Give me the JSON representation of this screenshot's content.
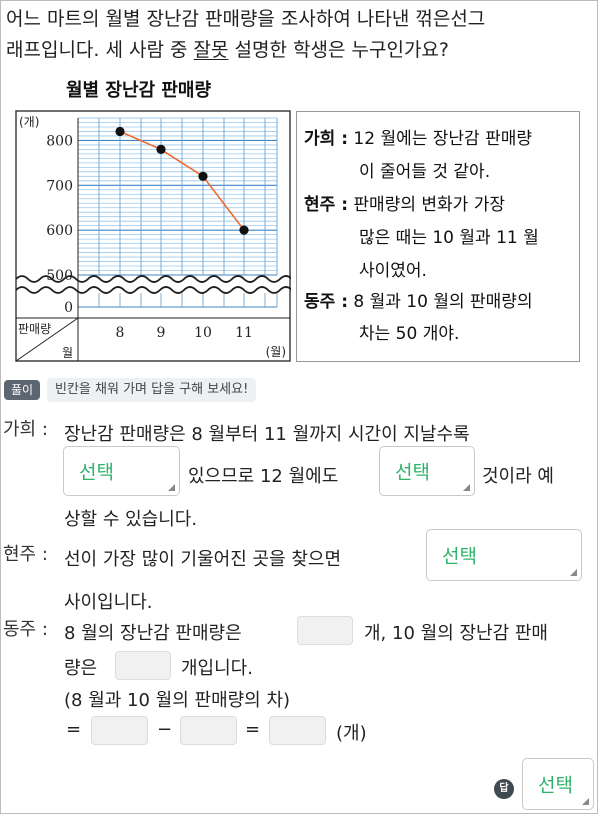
{
  "question": {
    "line1": "어느 마트의 월별 장난감 판매량을 조사하여 나타낸 꺾은선그",
    "line2_before": "래프입니다. 세 사람 중 ",
    "line2_underlined": "잘못",
    "line2_after": " 설명한 학생은 누구인가요?"
  },
  "chart_data": {
    "type": "line",
    "title": "월별 장난감 판매량",
    "y_unit": "(개)",
    "x_unit": "(월)",
    "corner_top": "판매량",
    "corner_bottom": "월",
    "x": [
      8,
      9,
      10,
      11
    ],
    "x_tick_labels": [
      "8",
      "9",
      "10",
      "11"
    ],
    "values": [
      820,
      780,
      720,
      600
    ],
    "y_tick_labels": [
      "800",
      "700",
      "600",
      "500"
    ],
    "y_zero_label": "0",
    "ylim": [
      500,
      850
    ],
    "y_axis_break": true,
    "grid": true,
    "line_color": "#ee6a2c",
    "grid_color": "#6aa6d6"
  },
  "statements": {
    "s1_name": "가희 :",
    "s1_line1": "12 월에는 장난감 판매량",
    "s1_line2": "이 줄어들 것 같아.",
    "s2_name": "현주 :",
    "s2_line1": "판매량의 변화가 가장",
    "s2_line2": "많은 때는 10 월과 11 월",
    "s2_line3": "사이였어.",
    "s3_name": "동주 :",
    "s3_line1": "8 월과 10 월의 판매량의",
    "s3_line2": "차는 50 개야."
  },
  "solution": {
    "badge": "풀이",
    "hint": "빈칸을 채워 가며 답을 구해 보세요!",
    "gahee_name": "가희 :",
    "gahee_l1": "장난감 판매량은 8 월부터 11 월까지 시간이 지날수록",
    "gahee_l2a": "있으므로 12 월에도",
    "gahee_l2b": "것이라 예",
    "gahee_l3": "상할 수 있습니다.",
    "hyunju_name": "현주 :",
    "hyunju_l1": "선이 가장 많이 기울어진 곳을 찾으면",
    "hyunju_l2": "사이입니다.",
    "dongju_name": "동주 :",
    "dongju_l1a": "8 월의 장난감 판매량은",
    "dongju_l1b": "개, 10 월의 장난감 판매",
    "dongju_l2a": "량은",
    "dongju_l2b": "개입니다.",
    "dongju_l3": "(8 월과 10 월의 판매량의 차)",
    "eq1": "=",
    "minus": "−",
    "eq2": "=",
    "unit": "(개)",
    "select_label": "선택",
    "answer_icon": "답"
  },
  "colors": {
    "select_text": "#2fb36b",
    "badge_bg": "#5c6670"
  }
}
